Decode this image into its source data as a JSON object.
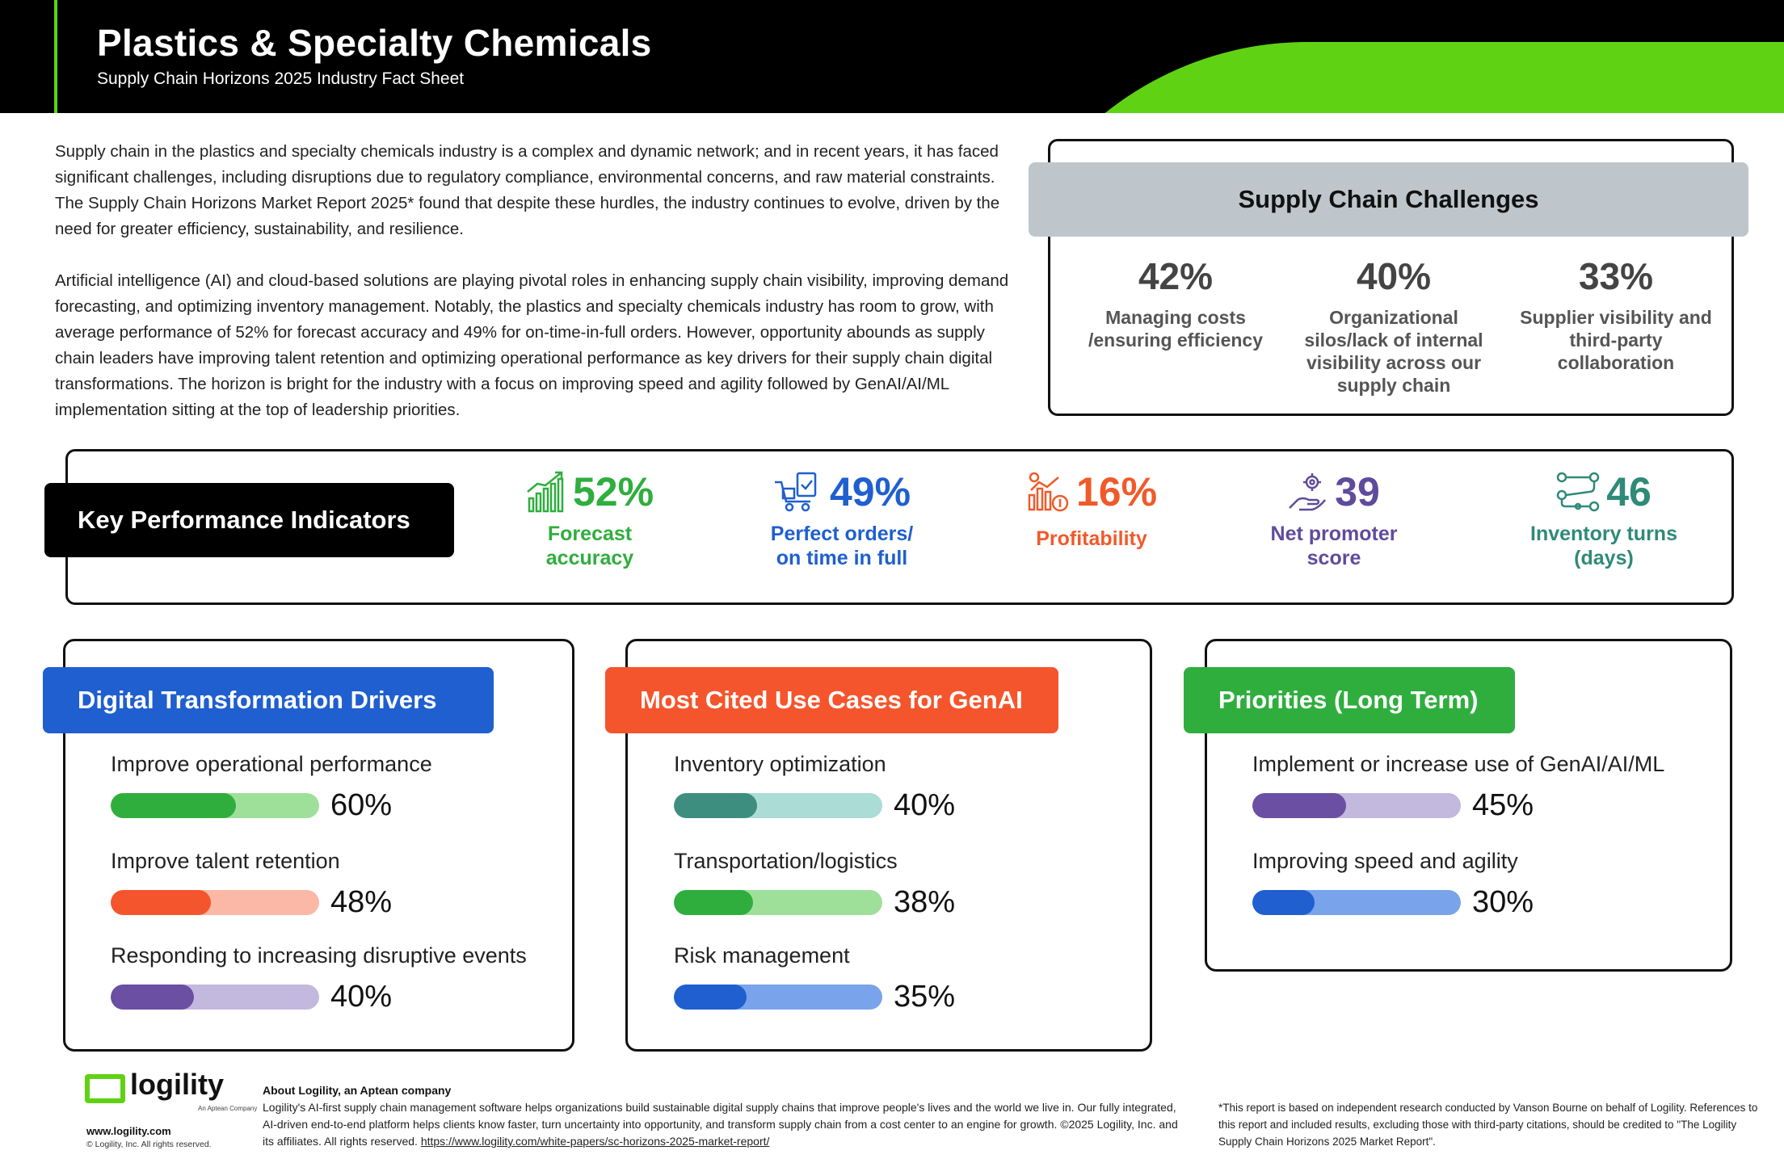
{
  "header": {
    "title": "Plastics & Specialty Chemicals",
    "subtitle": "Supply Chain Horizons 2025 Industry Fact Sheet"
  },
  "intro": {
    "p1": "Supply chain in the plastics and specialty chemicals industry is a complex and dynamic network; and in recent years, it has faced significant challenges, including disruptions due to regulatory compliance, environmental concerns, and raw material constraints. The Supply Chain Horizons Market Report 2025* found that despite these hurdles, the industry continues to evolve, driven by the need for greater efficiency, sustainability, and resilience.",
    "p2": "Artificial intelligence (AI) and cloud-based solutions are playing pivotal roles in enhancing supply chain visibility, improving demand forecasting, and optimizing inventory management. Notably, the plastics and specialty chemicals industry has room to grow, with average performance of 52% for forecast accuracy and 49% for on-time-in-full orders. However, opportunity abounds as supply chain leaders have improving talent retention and optimizing operational performance as key drivers for their supply chain digital transformations. The horizon is bright for the industry with a focus on improving speed and agility followed by GenAI/AI/ML implementation sitting at the top of leadership priorities."
  },
  "challenges": {
    "title": "Supply Chain Challenges",
    "items": [
      {
        "pct": "42%",
        "label": "Managing costs /ensuring efficiency"
      },
      {
        "pct": "40%",
        "label": "Organizational silos/lack of internal visibility across our supply chain"
      },
      {
        "pct": "33%",
        "label": "Supplier visibility and third-party collaboration"
      }
    ]
  },
  "kpi": {
    "title": "Key Performance Indicators",
    "items": [
      {
        "value": "52%",
        "label_1": "Forecast",
        "label_2": "accuracy",
        "color": "#2fae3e",
        "icon": "growth-chart-icon"
      },
      {
        "value": "49%",
        "label_1": "Perfect orders/",
        "label_2": "on time in full",
        "color": "#1f5fcf",
        "icon": "delivery-cart-icon"
      },
      {
        "value": "16%",
        "label_1": "Profitability",
        "label_2": "",
        "color": "#f05a2a",
        "icon": "profit-chart-icon"
      },
      {
        "value": "39",
        "label_1": "Net promoter",
        "label_2": "score",
        "color": "#5f4b9c",
        "icon": "hand-gear-icon"
      },
      {
        "value": "46",
        "label_1": "Inventory turns",
        "label_2": "(days)",
        "color": "#2f8a78",
        "icon": "flow-nodes-icon"
      }
    ]
  },
  "drivers": {
    "title": "Digital Transformation Drivers",
    "color": "#1f5fcf",
    "items": [
      {
        "label": "Improve operational performance",
        "value": "60%",
        "fraction": 0.6,
        "fill": "#2fae3e",
        "track": "#9ee09a"
      },
      {
        "label": "Improve talent retention",
        "value": "48%",
        "fraction": 0.48,
        "fill": "#f5552c",
        "track": "#fbb8a6"
      },
      {
        "label": "Responding to increasing disruptive events",
        "value": "40%",
        "fraction": 0.4,
        "fill": "#6a4fa3",
        "track": "#c3b8dd"
      }
    ]
  },
  "genai": {
    "title": "Most Cited Use Cases for GenAI",
    "color": "#f5552c",
    "items": [
      {
        "label": "Inventory optimization",
        "value": "40%",
        "fraction": 0.4,
        "fill": "#3e8e80",
        "track": "#acdcd6"
      },
      {
        "label": "Transportation/logistics",
        "value": "38%",
        "fraction": 0.38,
        "fill": "#2fae3e",
        "track": "#9ee09a"
      },
      {
        "label": "Risk management",
        "value": "35%",
        "fraction": 0.35,
        "fill": "#1f5fcf",
        "track": "#79a3ea"
      }
    ]
  },
  "priorities": {
    "title": "Priorities (Long Term)",
    "color": "#2fae3e",
    "items": [
      {
        "label": "Implement or increase use of GenAI/AI/ML",
        "value": "45%",
        "fraction": 0.45,
        "fill": "#6a4fa3",
        "track": "#c3b8dd"
      },
      {
        "label": "Improving speed and agility",
        "value": "30%",
        "fraction": 0.3,
        "fill": "#1f5fcf",
        "track": "#79a3ea"
      }
    ]
  },
  "footer": {
    "logo_text": "logility",
    "logo_sub": "An Aptean Company",
    "url": "www.logility.com",
    "copy": "© Logility, Inc. All rights reserved.",
    "about_title": "About Logility, an Aptean company",
    "about_text": "Logility's AI-first supply chain management software helps organizations build sustainable digital supply chains that improve people's lives and the world we live in. Our fully integrated, AI-driven end-to-end platform helps clients know faster, turn uncertainty into opportunity, and transform supply chain from a cost center to an engine for growth. ©2025 Logility, Inc. and its affiliates. All rights reserved.",
    "about_link": "https://www.logility.com/white-papers/sc-horizons-2025-market-report/",
    "footnote": "*This report is based on independent research conducted by Vanson Bourne on behalf of Logility. References to this report and included results, excluding those with third-party citations, should be credited to \"The Logility Supply Chain Horizons 2025 Market Report\"."
  }
}
